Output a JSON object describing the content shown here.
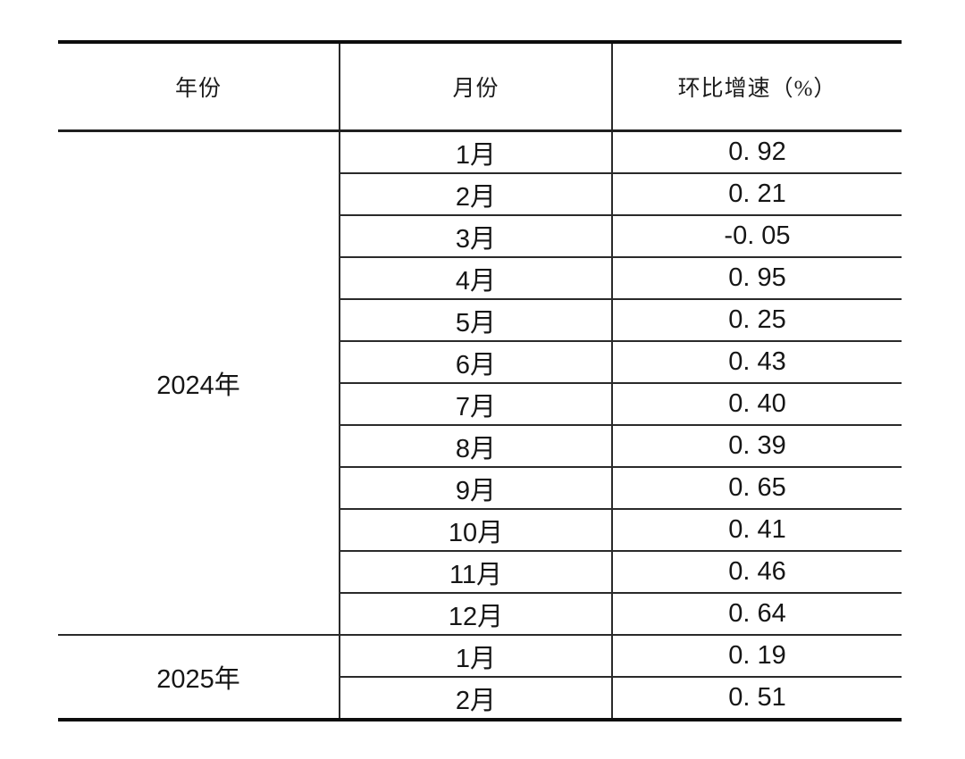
{
  "page": {
    "background_color": "#ffffff",
    "line_color": "#2a2a2a",
    "outer_rule_color": "#0d0d0d"
  },
  "table": {
    "headers": {
      "year": "年份",
      "month": "月份",
      "growth": "环比增速（%）"
    },
    "groups": [
      {
        "year": "2024年",
        "rows": [
          {
            "month": "1月",
            "value": "0. 92"
          },
          {
            "month": "2月",
            "value": "0. 21"
          },
          {
            "month": "3月",
            "value": "-0. 05"
          },
          {
            "month": "4月",
            "value": "0. 95"
          },
          {
            "month": "5月",
            "value": "0. 25"
          },
          {
            "month": "6月",
            "value": "0. 43"
          },
          {
            "month": "7月",
            "value": "0. 40"
          },
          {
            "month": "8月",
            "value": "0. 39"
          },
          {
            "month": "9月",
            "value": "0. 65"
          },
          {
            "month": "10月",
            "value": "0. 41"
          },
          {
            "month": "11月",
            "value": "0. 46"
          },
          {
            "month": "12月",
            "value": "0. 64"
          }
        ]
      },
      {
        "year": "2025年",
        "rows": [
          {
            "month": "1月",
            "value": "0. 19"
          },
          {
            "month": "2月",
            "value": "0. 51"
          }
        ]
      }
    ]
  },
  "chart_data": {
    "type": "table",
    "columns": [
      "年份",
      "月份",
      "环比增速（%）"
    ],
    "rows": [
      [
        "2024年",
        "1月",
        0.92
      ],
      [
        "2024年",
        "2月",
        0.21
      ],
      [
        "2024年",
        "3月",
        -0.05
      ],
      [
        "2024年",
        "4月",
        0.95
      ],
      [
        "2024年",
        "5月",
        0.25
      ],
      [
        "2024年",
        "6月",
        0.43
      ],
      [
        "2024年",
        "7月",
        0.4
      ],
      [
        "2024年",
        "8月",
        0.39
      ],
      [
        "2024年",
        "9月",
        0.65
      ],
      [
        "2024年",
        "10月",
        0.41
      ],
      [
        "2024年",
        "11月",
        0.46
      ],
      [
        "2024年",
        "12月",
        0.64
      ],
      [
        "2025年",
        "1月",
        0.19
      ],
      [
        "2025年",
        "2月",
        0.51
      ]
    ],
    "layout": {
      "grid": "internal horizontal rules per row; merged year cells; thick top and bottom rules; no outer side borders"
    }
  }
}
